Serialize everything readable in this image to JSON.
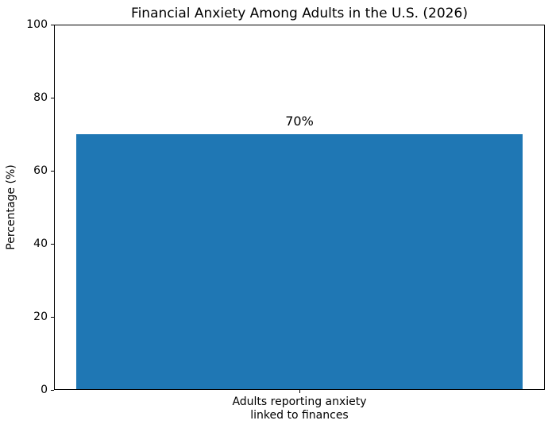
{
  "chart_data": {
    "type": "bar",
    "title": "Financial Anxiety Among Adults in the U.S. (2026)",
    "xlabel": "",
    "ylabel": "Percentage (%)",
    "categories": [
      "Adults reporting anxiety\nlinked to finances"
    ],
    "values": [
      70
    ],
    "value_labels": [
      "70%"
    ],
    "ylim": [
      0,
      100
    ],
    "yticks": [
      0,
      20,
      40,
      60,
      80,
      100
    ],
    "bar_color": "#1f77b4",
    "grid": false,
    "legend_position": "none"
  }
}
